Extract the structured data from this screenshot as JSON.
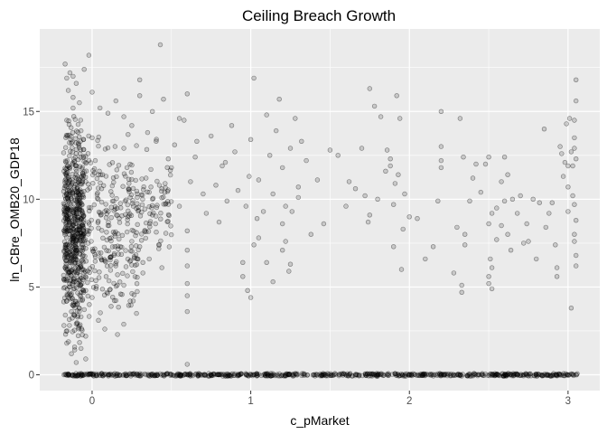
{
  "chart_data": {
    "type": "scatter",
    "title": "Ceiling Breach Growth",
    "xlabel": "c_pMarket",
    "ylabel": "ln_CBre_OMB20_GDP18",
    "xlim": [
      -0.33,
      3.2
    ],
    "ylim": [
      -0.9,
      19.7
    ],
    "x_ticks": [
      0,
      1,
      2,
      3
    ],
    "y_ticks": [
      0,
      5,
      10,
      15
    ],
    "x_tick_labels": [
      "0",
      "1",
      "2",
      "3"
    ],
    "y_tick_labels": [
      "0",
      "5",
      "10",
      "15"
    ],
    "grid": true,
    "legend": "none",
    "background_color": "#ebebeb",
    "grid_color": "#ffffff",
    "point_color": "#000000",
    "point_alpha": 0.15,
    "points": [
      [
        -0.17,
        17.7
      ],
      [
        -0.16,
        16.9
      ],
      [
        -0.15,
        16.2
      ],
      [
        -0.14,
        17.2
      ],
      [
        -0.12,
        15.8
      ],
      [
        -0.1,
        16.6
      ],
      [
        -0.05,
        17.4
      ],
      [
        -0.08,
        15.5
      ],
      [
        0.0,
        16.1
      ],
      [
        0.05,
        15.2
      ],
      [
        0.1,
        14.9
      ],
      [
        0.15,
        15.6
      ],
      [
        0.2,
        14.7
      ],
      [
        0.25,
        14.2
      ],
      [
        0.3,
        15.9
      ],
      [
        0.35,
        13.8
      ],
      [
        0.43,
        18.8
      ],
      [
        -0.02,
        18.2
      ],
      [
        -0.12,
        17.0
      ],
      [
        0.38,
        15.0
      ],
      [
        -0.16,
        14.5
      ],
      [
        -0.13,
        13.2
      ],
      [
        -0.1,
        12.6
      ],
      [
        -0.07,
        13.9
      ],
      [
        -0.04,
        12.1
      ],
      [
        -0.16,
        11.5
      ],
      [
        -0.13,
        10.8
      ],
      [
        -0.1,
        10.2
      ],
      [
        -0.07,
        9.8
      ],
      [
        -0.04,
        11.0
      ],
      [
        -0.16,
        9.0
      ],
      [
        -0.13,
        8.4
      ],
      [
        -0.1,
        7.7
      ],
      [
        -0.07,
        8.9
      ],
      [
        -0.04,
        7.2
      ],
      [
        -0.16,
        6.5
      ],
      [
        -0.13,
        5.9
      ],
      [
        -0.1,
        5.3
      ],
      [
        -0.07,
        6.2
      ],
      [
        -0.04,
        4.8
      ],
      [
        -0.16,
        4.2
      ],
      [
        -0.13,
        3.6
      ],
      [
        -0.1,
        2.9
      ],
      [
        -0.07,
        3.3
      ],
      [
        -0.04,
        2.2
      ],
      [
        -0.16,
        1.8
      ],
      [
        -0.13,
        1.2
      ],
      [
        -0.1,
        0.7
      ],
      [
        -0.07,
        1.5
      ],
      [
        -0.04,
        0.9
      ],
      [
        0.0,
        13.5
      ],
      [
        0.02,
        12.2
      ],
      [
        0.04,
        11.4
      ],
      [
        0.06,
        10.6
      ],
      [
        0.08,
        9.3
      ],
      [
        0.1,
        8.5
      ],
      [
        0.12,
        7.8
      ],
      [
        0.14,
        6.9
      ],
      [
        0.16,
        5.7
      ],
      [
        0.18,
        4.6
      ],
      [
        0.2,
        12.9
      ],
      [
        0.22,
        11.8
      ],
      [
        0.24,
        10.1
      ],
      [
        0.26,
        9.6
      ],
      [
        0.28,
        8.1
      ],
      [
        0.3,
        7.3
      ],
      [
        0.32,
        6.4
      ],
      [
        0.34,
        11.2
      ],
      [
        0.36,
        10.4
      ],
      [
        0.38,
        9.1
      ],
      [
        0.4,
        8.6
      ],
      [
        0.42,
        7.4
      ],
      [
        0.44,
        6.1
      ],
      [
        0.46,
        10.9
      ],
      [
        0.48,
        12.3
      ],
      [
        0.0,
        4.4
      ],
      [
        0.04,
        3.1
      ],
      [
        0.08,
        2.6
      ],
      [
        0.12,
        3.9
      ],
      [
        0.16,
        2.3
      ],
      [
        0.2,
        5.1
      ],
      [
        0.24,
        4.2
      ],
      [
        0.28,
        3.5
      ],
      [
        0.32,
        5.8
      ],
      [
        0.36,
        6.6
      ],
      [
        0.5,
        11.8
      ],
      [
        0.52,
        13.1
      ],
      [
        0.55,
        9.6
      ],
      [
        0.58,
        14.5
      ],
      [
        0.6,
        16.0
      ],
      [
        0.6,
        8.2
      ],
      [
        0.6,
        7.1
      ],
      [
        0.6,
        6.2
      ],
      [
        0.6,
        5.2
      ],
      [
        0.6,
        4.5
      ],
      [
        0.6,
        3.6
      ],
      [
        0.6,
        0.6
      ],
      [
        0.62,
        11.0
      ],
      [
        0.65,
        12.4
      ],
      [
        0.7,
        10.3
      ],
      [
        0.72,
        9.2
      ],
      [
        0.75,
        13.6
      ],
      [
        0.78,
        10.8
      ],
      [
        0.8,
        8.7
      ],
      [
        0.82,
        11.9
      ],
      [
        0.85,
        9.9
      ],
      [
        0.88,
        14.2
      ],
      [
        0.9,
        12.7
      ],
      [
        0.92,
        10.5
      ],
      [
        0.95,
        6.4
      ],
      [
        0.97,
        9.6
      ],
      [
        0.99,
        11.3
      ],
      [
        0.3,
        16.8
      ],
      [
        0.45,
        15.7
      ],
      [
        0.55,
        14.6
      ],
      [
        0.66,
        13.3
      ],
      [
        0.84,
        12.1
      ],
      [
        1.0,
        13.4
      ],
      [
        1.02,
        16.9
      ],
      [
        1.05,
        11.1
      ],
      [
        1.08,
        9.3
      ],
      [
        1.1,
        14.8
      ],
      [
        1.12,
        12.5
      ],
      [
        1.14,
        10.3
      ],
      [
        1.16,
        13.9
      ],
      [
        1.18,
        15.7
      ],
      [
        1.2,
        11.8
      ],
      [
        1.22,
        9.6
      ],
      [
        1.25,
        12.9
      ],
      [
        1.28,
        14.6
      ],
      [
        1.3,
        10.7
      ],
      [
        1.32,
        13.3
      ],
      [
        1.05,
        7.8
      ],
      [
        1.1,
        6.4
      ],
      [
        1.14,
        5.3
      ],
      [
        1.2,
        7.1
      ],
      [
        1.25,
        6.3
      ],
      [
        1.2,
        8.6
      ],
      [
        1.22,
        7.6
      ],
      [
        1.24,
        5.9
      ],
      [
        1.26,
        9.3
      ],
      [
        1.3,
        10.1
      ],
      [
        0.95,
        5.6
      ],
      [
        0.98,
        4.8
      ],
      [
        1.0,
        4.4
      ],
      [
        1.02,
        7.4
      ],
      [
        1.04,
        8.9
      ],
      [
        1.35,
        12.2
      ],
      [
        1.38,
        8.0
      ],
      [
        1.42,
        11.1
      ],
      [
        1.46,
        8.6
      ],
      [
        1.5,
        12.8
      ],
      [
        1.55,
        12.5
      ],
      [
        1.6,
        9.6
      ],
      [
        1.62,
        11.0
      ],
      [
        1.66,
        10.6
      ],
      [
        1.7,
        12.9
      ],
      [
        1.72,
        10.2
      ],
      [
        1.75,
        16.3
      ],
      [
        1.78,
        15.3
      ],
      [
        1.8,
        10.0
      ],
      [
        1.82,
        14.7
      ],
      [
        1.75,
        9.1
      ],
      [
        1.74,
        8.7
      ],
      [
        1.85,
        11.6
      ],
      [
        1.88,
        12.3
      ],
      [
        1.9,
        9.7
      ],
      [
        1.92,
        15.9
      ],
      [
        1.94,
        14.6
      ],
      [
        1.9,
        7.3
      ],
      [
        1.95,
        6.0
      ],
      [
        1.96,
        8.3
      ],
      [
        1.86,
        12.8
      ],
      [
        1.88,
        11.9
      ],
      [
        1.91,
        10.9
      ],
      [
        1.93,
        11.4
      ],
      [
        1.97,
        10.3
      ],
      [
        2.0,
        9.0
      ],
      [
        2.05,
        8.9
      ],
      [
        2.1,
        6.6
      ],
      [
        2.15,
        7.3
      ],
      [
        2.18,
        9.9
      ],
      [
        2.2,
        15.0
      ],
      [
        2.2,
        13.0
      ],
      [
        2.2,
        12.2
      ],
      [
        2.2,
        11.8
      ],
      [
        2.28,
        5.8
      ],
      [
        2.3,
        8.4
      ],
      [
        2.32,
        14.6
      ],
      [
        2.34,
        12.4
      ],
      [
        2.33,
        5.1
      ],
      [
        2.33,
        4.7
      ],
      [
        2.35,
        7.4
      ],
      [
        2.35,
        8.0
      ],
      [
        2.38,
        9.9
      ],
      [
        2.4,
        11.2
      ],
      [
        2.42,
        12.0
      ],
      [
        2.45,
        10.4
      ],
      [
        2.48,
        12.0
      ],
      [
        2.5,
        12.4
      ],
      [
        2.52,
        9.2
      ],
      [
        2.5,
        8.6
      ],
      [
        2.52,
        6.1
      ],
      [
        2.5,
        5.6
      ],
      [
        2.5,
        5.2
      ],
      [
        2.52,
        4.9
      ],
      [
        2.51,
        6.6
      ],
      [
        2.55,
        9.5
      ],
      [
        2.58,
        11.0
      ],
      [
        2.6,
        12.4
      ],
      [
        2.62,
        11.4
      ],
      [
        2.65,
        10.0
      ],
      [
        2.55,
        7.7
      ],
      [
        2.58,
        8.5
      ],
      [
        2.6,
        9.9
      ],
      [
        2.62,
        8.0
      ],
      [
        2.64,
        7.1
      ],
      [
        2.68,
        9.2
      ],
      [
        2.7,
        10.2
      ],
      [
        2.72,
        7.5
      ],
      [
        2.74,
        8.6
      ],
      [
        2.75,
        7.6
      ],
      [
        2.78,
        10.0
      ],
      [
        2.8,
        6.6
      ],
      [
        2.82,
        9.8
      ],
      [
        2.85,
        14.0
      ],
      [
        2.86,
        8.4
      ],
      [
        2.88,
        9.2
      ],
      [
        2.9,
        9.8
      ],
      [
        2.92,
        7.4
      ],
      [
        2.93,
        6.1
      ],
      [
        2.93,
        5.6
      ],
      [
        2.95,
        13.0
      ],
      [
        2.96,
        12.6
      ],
      [
        2.97,
        11.3
      ],
      [
        2.98,
        12.1
      ],
      [
        2.99,
        14.3
      ],
      [
        3.0,
        11.9
      ],
      [
        3.0,
        10.7
      ],
      [
        3.01,
        14.6
      ],
      [
        3.02,
        12.7
      ],
      [
        3.0,
        9.3
      ],
      [
        3.02,
        3.8
      ],
      [
        3.03,
        10.2
      ],
      [
        3.03,
        11.9
      ],
      [
        3.04,
        12.9
      ],
      [
        3.04,
        14.5
      ],
      [
        3.05,
        16.8
      ],
      [
        3.05,
        15.6
      ],
      [
        3.04,
        13.5
      ],
      [
        3.05,
        12.3
      ],
      [
        3.04,
        9.7
      ],
      [
        3.05,
        8.8
      ],
      [
        3.04,
        7.6
      ],
      [
        3.05,
        6.8
      ],
      [
        3.05,
        6.2
      ],
      [
        3.04,
        8.0
      ],
      [
        0.0,
        0.0
      ],
      [
        0.2,
        0.0
      ],
      [
        0.4,
        0.0
      ],
      [
        0.6,
        0.0
      ],
      [
        0.8,
        0.0
      ],
      [
        1.0,
        0.0
      ],
      [
        1.2,
        0.0
      ],
      [
        1.4,
        0.0
      ],
      [
        1.6,
        0.0
      ],
      [
        1.8,
        0.0
      ],
      [
        2.0,
        0.0
      ],
      [
        2.2,
        0.0
      ],
      [
        2.4,
        0.0
      ],
      [
        2.6,
        0.0
      ],
      [
        2.8,
        0.0
      ],
      [
        3.0,
        0.0
      ]
    ],
    "dense_clusters": [
      {
        "x_range": [
          -0.18,
          -0.05
        ],
        "y_range": [
          0.3,
          16.3
        ],
        "count": 600
      },
      {
        "x_range": [
          -0.05,
          0.3
        ],
        "y_range": [
          0.5,
          15.5
        ],
        "count": 260
      },
      {
        "x_range": [
          0.3,
          0.5
        ],
        "y_range": [
          5.0,
          14.0
        ],
        "count": 70
      }
    ],
    "zero_band": {
      "x_range": [
        -0.18,
        3.06
      ],
      "y": 0.0,
      "count": 700
    }
  }
}
